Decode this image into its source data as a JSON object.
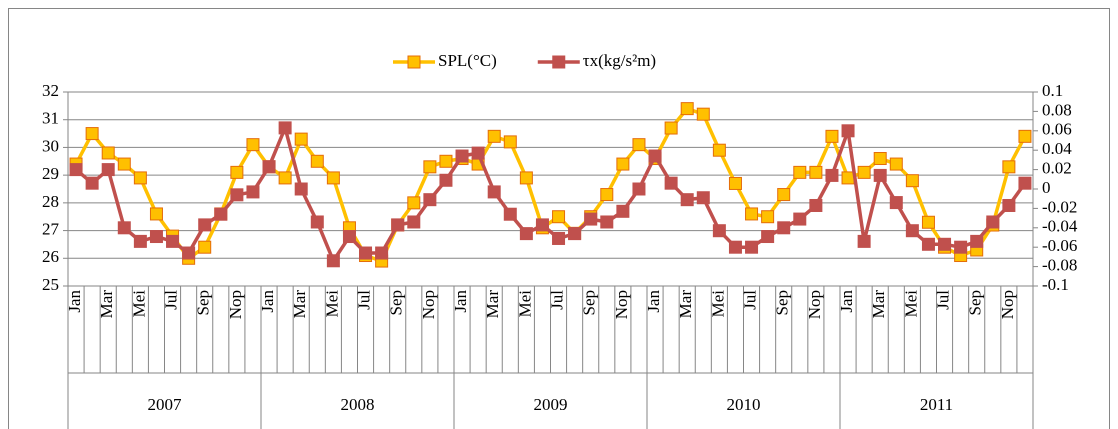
{
  "chart_data": {
    "type": "line",
    "categories": [
      "Jan",
      null,
      "Mar",
      null,
      "Mei",
      null,
      "Jul",
      null,
      "Sep",
      null,
      "Nop",
      null,
      "Jan",
      null,
      "Mar",
      null,
      "Mei",
      null,
      "Jul",
      null,
      "Sep",
      null,
      "Nop",
      null,
      "Jan",
      null,
      "Mar",
      null,
      "Mei",
      null,
      "Jul",
      null,
      "Sep",
      null,
      "Nop",
      null,
      "Jan",
      null,
      "Mar",
      null,
      "Mei",
      null,
      "Jul",
      null,
      "Sep",
      null,
      "Nop",
      null,
      "Jan",
      null,
      "Mar",
      null,
      "Mei",
      null,
      "Jul",
      null,
      "Sep",
      null,
      "Nop",
      null
    ],
    "category_groups": [
      "2007",
      "2008",
      "2009",
      "2010",
      "2011"
    ],
    "series": [
      {
        "name": "SPL(°C)",
        "color": "#FFC000",
        "axis": "y",
        "values": [
          29.4,
          30.5,
          29.8,
          29.4,
          28.9,
          27.6,
          26.8,
          26.0,
          26.4,
          27.6,
          29.1,
          30.1,
          29.3,
          28.9,
          30.3,
          29.5,
          28.9,
          27.1,
          26.1,
          25.9,
          27.2,
          28.0,
          29.3,
          29.5,
          29.6,
          29.4,
          30.4,
          30.2,
          28.9,
          27.1,
          27.5,
          26.9,
          27.5,
          28.3,
          29.4,
          30.1,
          29.6,
          30.7,
          31.4,
          31.2,
          29.9,
          28.7,
          27.6,
          27.5,
          28.3,
          29.1,
          29.1,
          30.4,
          28.9,
          29.1,
          29.6,
          29.4,
          28.8,
          27.3,
          26.4,
          26.1,
          26.3,
          27.2,
          29.3,
          30.4
        ]
      },
      {
        "name": "τx(kg/s²m)",
        "color": "#C0504D",
        "axis": "y2",
        "values": [
          0.02,
          0.006,
          0.02,
          -0.04,
          -0.054,
          -0.049,
          -0.054,
          -0.066,
          -0.037,
          -0.026,
          -0.006,
          -0.003,
          0.023,
          0.063,
          0.0,
          -0.034,
          -0.074,
          -0.049,
          -0.066,
          -0.066,
          -0.037,
          -0.034,
          -0.011,
          0.009,
          0.034,
          0.037,
          -0.003,
          -0.026,
          -0.046,
          -0.037,
          -0.051,
          -0.046,
          -0.031,
          -0.034,
          -0.023,
          0.0,
          0.034,
          0.006,
          -0.011,
          -0.009,
          -0.043,
          -0.06,
          -0.06,
          -0.049,
          -0.04,
          -0.031,
          -0.017,
          0.014,
          0.06,
          -0.054,
          0.014,
          -0.014,
          -0.043,
          -0.057,
          -0.057,
          -0.06,
          -0.054,
          -0.034,
          -0.017,
          0.006
        ]
      }
    ],
    "ylim": [
      25,
      32
    ],
    "yticks": [
      25,
      26,
      27,
      28,
      29,
      30,
      31,
      32
    ],
    "y2lim": [
      -0.1,
      0.1
    ],
    "y2ticks": [
      -0.1,
      -0.08,
      -0.06,
      -0.04,
      -0.02,
      0,
      0.02,
      0.04,
      0.06,
      0.08,
      0.1
    ],
    "grid": true,
    "legend": "top"
  }
}
